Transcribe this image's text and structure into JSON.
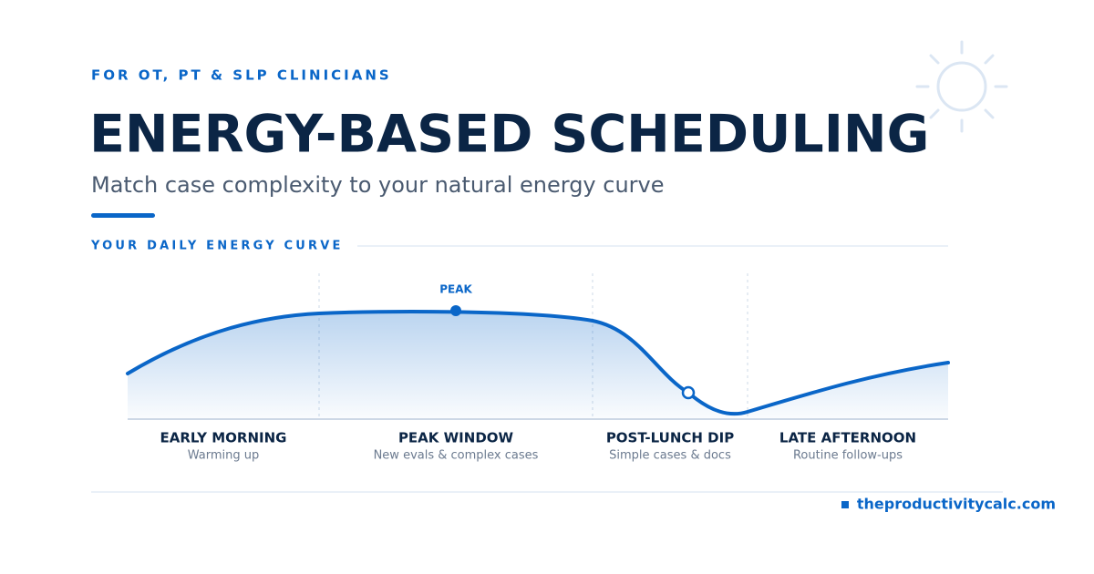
{
  "eyebrow": "FOR OT, PT & SLP CLINICIANS",
  "title": "ENERGY-BASED SCHEDULING",
  "subtitle": "Match case complexity to your natural energy curve",
  "section_label": "YOUR DAILY ENERGY CURVE",
  "peak_label": "PEAK",
  "phases": [
    {
      "name": "EARLY MORNING",
      "note": "Warming up"
    },
    {
      "name": "PEAK WINDOW",
      "note": "New evals & complex cases"
    },
    {
      "name": "POST-LUNCH DIP",
      "note": "Simple cases & docs"
    },
    {
      "name": "LATE AFTERNOON",
      "note": "Routine follow-ups"
    }
  ],
  "footer": {
    "url": "theproductivitycalc.com"
  }
}
